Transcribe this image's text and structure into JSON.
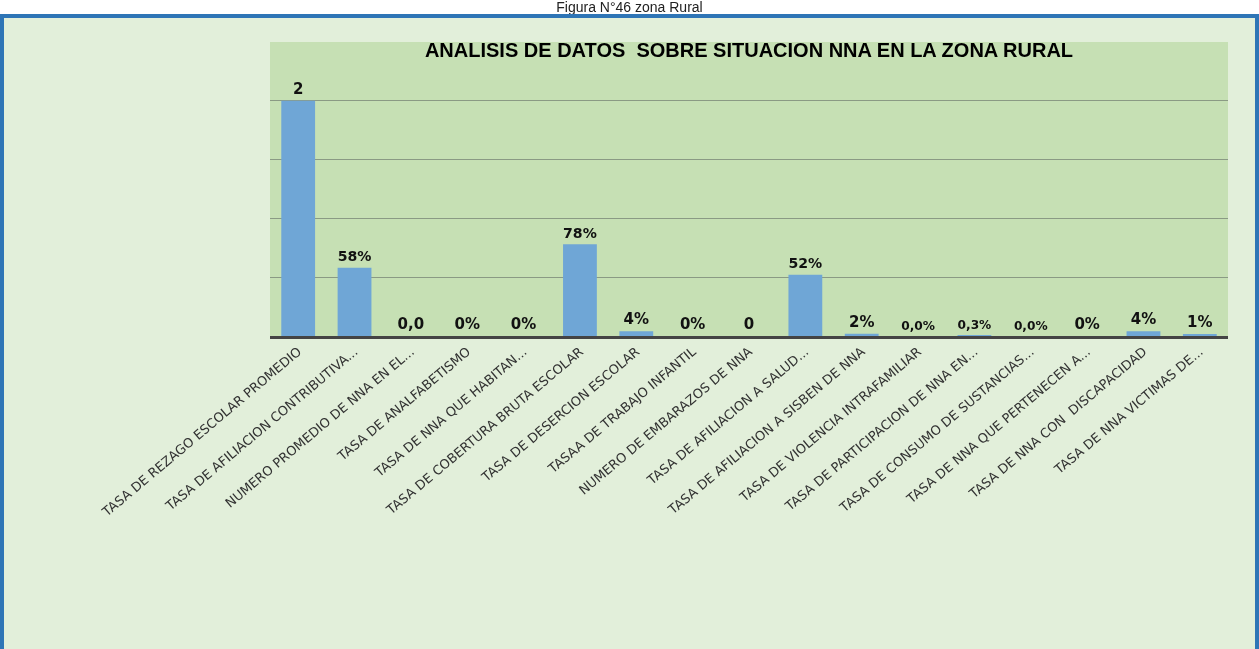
{
  "chart_data": {
    "type": "bar",
    "title": "ANALISIS DE DATOS  SOBRE SITUACION NNA EN LA ZONA RURAL",
    "annotations": [
      "Figura N°46 zona Rural"
    ],
    "categories": [
      "TASA DE REZAGO ESCOLAR PROMEDIO",
      "TASA DE AFILIACION CONTRIBUTIVA...",
      "NUMERO PROMEDIO DE NNA EN EL...",
      "TASA DE ANALFABETISMO",
      "TASA DE NNA QUE HABITAN...",
      "TASA DE COBERTURA BRUTA ESCOLAR",
      "TASA DE DESERCION ESCOLAR",
      "TASAA DE TRABAJO INFANTIL",
      "NUMERO DE EMBARAZOS DE NNA",
      "TASA DE AFILIACION A SALUD...",
      "TASA DE AFILIACION A SISBEN DE NNA",
      "TASA DE VIOLENCIA INTRAFAMILIAR",
      "TASA DE PARTICIPACION DE NNA EN...",
      "TASA DE CONSUMO DE SUSTANCIAS...",
      "TASA DE NNA QUE PERTENECEN A...",
      "TASA DE NNA CON  DISCAPACIDAD",
      "TASA DE NNA VICTIMAS DE..."
    ],
    "values": [
      2,
      0.58,
      0,
      0,
      0,
      0.78,
      0.04,
      0,
      0,
      0.52,
      0.02,
      0,
      0.003,
      0,
      0,
      0.04,
      0.01
    ],
    "value_labels": [
      "2",
      "58%",
      "0,0",
      "0%",
      "0%",
      "78%",
      "4%",
      "0%",
      "0",
      "52%",
      "2%",
      "0,0%",
      "0,3%",
      "0,0%",
      "0%",
      "4%",
      "1%"
    ],
    "color": "#6fa6d6",
    "ylim": [
      0,
      2.5
    ],
    "yticks": [
      {
        "value": 0.5,
        "label": null
      },
      {
        "value": 1,
        "label": null
      },
      {
        "value": 1.5,
        "label": null
      },
      {
        "value": 2,
        "label": null
      }
    ],
    "grid": "y",
    "tick_labels": "x"
  }
}
